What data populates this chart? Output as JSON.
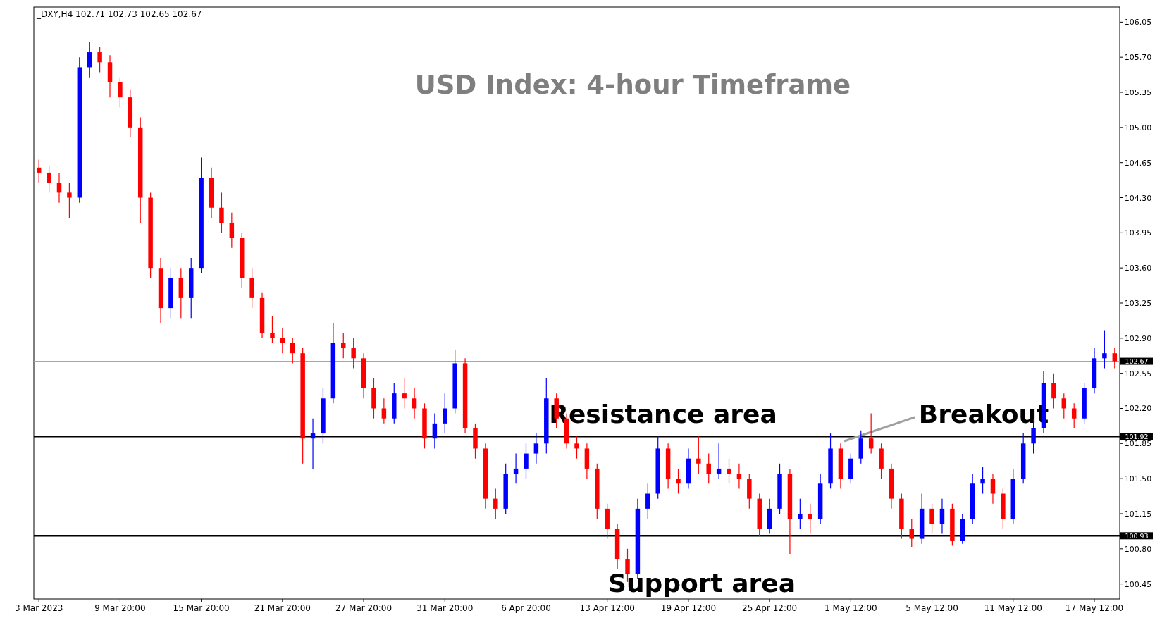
{
  "chart_data": {
    "type": "candlestick",
    "title": "USD Index: 4-hour Timeframe",
    "annotations": [
      "_DXY,H4  102.71 102.73 102.65 102.67",
      "Resistance area",
      "Support area",
      "Breakout"
    ],
    "categories": [
      "3 Mar 2023",
      null,
      null,
      null,
      null,
      null,
      null,
      null,
      "9 Mar 20:00",
      null,
      null,
      null,
      null,
      null,
      null,
      null,
      "15 Mar 20:00",
      null,
      null,
      null,
      null,
      null,
      null,
      null,
      "21 Mar 20:00",
      null,
      null,
      null,
      null,
      null,
      null,
      null,
      "27 Mar 20:00",
      null,
      null,
      null,
      null,
      null,
      null,
      null,
      "31 Mar 20:00",
      null,
      null,
      null,
      null,
      null,
      null,
      null,
      "6 Apr 20:00",
      null,
      null,
      null,
      null,
      null,
      null,
      null,
      "13 Apr 12:00",
      null,
      null,
      null,
      null,
      null,
      null,
      null,
      "19 Apr 12:00",
      null,
      null,
      null,
      null,
      null,
      null,
      null,
      "25 Apr 12:00",
      null,
      null,
      null,
      null,
      null,
      null,
      null,
      "1 May 12:00",
      null,
      null,
      null,
      null,
      null,
      null,
      null,
      "5 May 12:00",
      null,
      null,
      null,
      null,
      null,
      null,
      null,
      "11 May 12:00",
      null,
      null,
      null,
      null,
      null,
      null,
      null,
      "17 May 12:00",
      null,
      null
    ],
    "ohlc": [
      [
        104.6,
        104.68,
        104.45,
        104.55
      ],
      [
        104.55,
        104.62,
        104.35,
        104.45
      ],
      [
        104.45,
        104.55,
        104.25,
        104.35
      ],
      [
        104.35,
        104.45,
        104.1,
        104.3
      ],
      [
        104.3,
        105.7,
        104.25,
        105.6
      ],
      [
        105.6,
        105.85,
        105.5,
        105.75
      ],
      [
        105.75,
        105.8,
        105.55,
        105.65
      ],
      [
        105.65,
        105.72,
        105.3,
        105.45
      ],
      [
        105.45,
        105.5,
        105.2,
        105.3
      ],
      [
        105.3,
        105.38,
        104.9,
        105.0
      ],
      [
        105.0,
        105.1,
        104.05,
        104.3
      ],
      [
        104.3,
        104.35,
        103.5,
        103.6
      ],
      [
        103.6,
        103.7,
        103.05,
        103.2
      ],
      [
        103.2,
        103.6,
        103.1,
        103.5
      ],
      [
        103.5,
        103.6,
        103.1,
        103.3
      ],
      [
        103.3,
        103.7,
        103.1,
        103.6
      ],
      [
        103.6,
        104.7,
        103.55,
        104.5
      ],
      [
        104.5,
        104.6,
        104.1,
        104.2
      ],
      [
        104.2,
        104.35,
        103.95,
        104.05
      ],
      [
        104.05,
        104.15,
        103.8,
        103.9
      ],
      [
        103.9,
        103.95,
        103.4,
        103.5
      ],
      [
        103.5,
        103.6,
        103.2,
        103.3
      ],
      [
        103.3,
        103.35,
        102.9,
        102.95
      ],
      [
        102.95,
        103.12,
        102.85,
        102.9
      ],
      [
        102.9,
        103.0,
        102.75,
        102.85
      ],
      [
        102.85,
        102.9,
        102.65,
        102.75
      ],
      [
        102.75,
        102.8,
        101.65,
        101.9
      ],
      [
        101.9,
        102.1,
        101.6,
        101.95
      ],
      [
        101.95,
        102.4,
        101.85,
        102.3
      ],
      [
        102.3,
        103.05,
        102.25,
        102.85
      ],
      [
        102.85,
        102.95,
        102.7,
        102.8
      ],
      [
        102.8,
        102.9,
        102.6,
        102.7
      ],
      [
        102.7,
        102.75,
        102.3,
        102.4
      ],
      [
        102.4,
        102.5,
        102.1,
        102.2
      ],
      [
        102.2,
        102.3,
        102.05,
        102.1
      ],
      [
        102.1,
        102.45,
        102.05,
        102.35
      ],
      [
        102.35,
        102.5,
        102.2,
        102.3
      ],
      [
        102.3,
        102.4,
        102.1,
        102.2
      ],
      [
        102.2,
        102.25,
        101.8,
        101.9
      ],
      [
        101.9,
        102.15,
        101.8,
        102.05
      ],
      [
        102.05,
        102.35,
        101.95,
        102.2
      ],
      [
        102.2,
        102.78,
        102.15,
        102.65
      ],
      [
        102.65,
        102.7,
        101.95,
        102.0
      ],
      [
        102.0,
        102.05,
        101.7,
        101.8
      ],
      [
        101.8,
        101.85,
        101.2,
        101.3
      ],
      [
        101.3,
        101.4,
        101.1,
        101.2
      ],
      [
        101.2,
        101.65,
        101.15,
        101.55
      ],
      [
        101.55,
        101.75,
        101.45,
        101.6
      ],
      [
        101.6,
        101.85,
        101.5,
        101.75
      ],
      [
        101.75,
        101.95,
        101.65,
        101.85
      ],
      [
        101.85,
        102.5,
        101.75,
        102.3
      ],
      [
        102.3,
        102.35,
        102.0,
        102.1
      ],
      [
        102.1,
        102.15,
        101.8,
        101.85
      ],
      [
        101.85,
        101.92,
        101.7,
        101.8
      ],
      [
        101.8,
        101.85,
        101.5,
        101.6
      ],
      [
        101.6,
        101.65,
        101.1,
        101.2
      ],
      [
        101.2,
        101.25,
        100.9,
        101.0
      ],
      [
        101.0,
        101.05,
        100.6,
        100.7
      ],
      [
        100.7,
        100.8,
        100.47,
        100.55
      ],
      [
        100.55,
        101.3,
        100.5,
        101.2
      ],
      [
        101.2,
        101.45,
        101.1,
        101.35
      ],
      [
        101.35,
        101.92,
        101.3,
        101.8
      ],
      [
        101.8,
        101.85,
        101.4,
        101.5
      ],
      [
        101.5,
        101.6,
        101.35,
        101.45
      ],
      [
        101.45,
        101.8,
        101.4,
        101.7
      ],
      [
        101.7,
        101.92,
        101.55,
        101.65
      ],
      [
        101.65,
        101.75,
        101.45,
        101.55
      ],
      [
        101.55,
        101.85,
        101.5,
        101.6
      ],
      [
        101.6,
        101.7,
        101.45,
        101.55
      ],
      [
        101.55,
        101.65,
        101.4,
        101.5
      ],
      [
        101.5,
        101.55,
        101.2,
        101.3
      ],
      [
        101.3,
        101.35,
        100.93,
        101.0
      ],
      [
        101.0,
        101.3,
        100.95,
        101.2
      ],
      [
        101.2,
        101.65,
        101.15,
        101.55
      ],
      [
        101.55,
        101.6,
        100.75,
        101.1
      ],
      [
        101.1,
        101.3,
        101.0,
        101.15
      ],
      [
        101.15,
        101.25,
        100.95,
        101.1
      ],
      [
        101.1,
        101.55,
        101.05,
        101.45
      ],
      [
        101.45,
        101.95,
        101.4,
        101.8
      ],
      [
        101.8,
        101.85,
        101.4,
        101.5
      ],
      [
        101.5,
        101.75,
        101.45,
        101.7
      ],
      [
        101.7,
        101.98,
        101.65,
        101.9
      ],
      [
        101.9,
        102.15,
        101.75,
        101.8
      ],
      [
        101.8,
        101.85,
        101.5,
        101.6
      ],
      [
        101.6,
        101.65,
        101.2,
        101.3
      ],
      [
        101.3,
        101.35,
        100.9,
        101.0
      ],
      [
        101.0,
        101.1,
        100.82,
        100.9
      ],
      [
        100.9,
        101.35,
        100.85,
        101.2
      ],
      [
        101.2,
        101.25,
        100.95,
        101.05
      ],
      [
        101.05,
        101.3,
        100.95,
        101.2
      ],
      [
        101.2,
        101.25,
        100.83,
        100.88
      ],
      [
        100.88,
        101.15,
        100.85,
        101.1
      ],
      [
        101.1,
        101.55,
        101.05,
        101.45
      ],
      [
        101.45,
        101.62,
        101.35,
        101.5
      ],
      [
        101.5,
        101.55,
        101.25,
        101.35
      ],
      [
        101.35,
        101.4,
        101.0,
        101.1
      ],
      [
        101.1,
        101.6,
        101.05,
        101.5
      ],
      [
        101.5,
        101.95,
        101.45,
        101.85
      ],
      [
        101.85,
        102.1,
        101.75,
        102.0
      ],
      [
        102.0,
        102.57,
        101.95,
        102.45
      ],
      [
        102.45,
        102.55,
        102.2,
        102.3
      ],
      [
        102.3,
        102.35,
        102.1,
        102.2
      ],
      [
        102.2,
        102.25,
        102.0,
        102.1
      ],
      [
        102.1,
        102.45,
        102.05,
        102.4
      ],
      [
        102.4,
        102.8,
        102.35,
        102.7
      ],
      [
        102.7,
        102.98,
        102.6,
        102.75
      ],
      [
        102.75,
        102.8,
        102.6,
        102.67
      ]
    ],
    "colors": [
      "#ff0000",
      "#ff0000",
      "#ff0000",
      "#ff0000",
      "#0000ff",
      "#0000ff",
      "#ff0000",
      "#ff0000",
      "#ff0000",
      "#ff0000",
      "#ff0000",
      "#ff0000",
      "#ff0000",
      "#0000ff",
      "#ff0000",
      "#0000ff",
      "#0000ff",
      "#ff0000",
      "#ff0000",
      "#ff0000",
      "#ff0000",
      "#ff0000",
      "#ff0000",
      "#ff0000",
      "#ff0000",
      "#ff0000",
      "#ff0000",
      "#0000ff",
      "#0000ff",
      "#0000ff",
      "#ff0000",
      "#ff0000",
      "#ff0000",
      "#ff0000",
      "#ff0000",
      "#0000ff",
      "#ff0000",
      "#ff0000",
      "#ff0000",
      "#0000ff",
      "#0000ff",
      "#0000ff",
      "#ff0000",
      "#ff0000",
      "#ff0000",
      "#ff0000",
      "#0000ff",
      "#0000ff",
      "#0000ff",
      "#0000ff",
      "#0000ff",
      "#ff0000",
      "#ff0000",
      "#ff0000",
      "#ff0000",
      "#ff0000",
      "#ff0000",
      "#ff0000",
      "#ff0000",
      "#0000ff",
      "#0000ff",
      "#0000ff",
      "#ff0000",
      "#ff0000",
      "#0000ff",
      "#ff0000",
      "#ff0000",
      "#0000ff",
      "#ff0000",
      "#ff0000",
      "#ff0000",
      "#ff0000",
      "#0000ff",
      "#0000ff",
      "#ff0000",
      "#0000ff",
      "#ff0000",
      "#0000ff",
      "#0000ff",
      "#ff0000",
      "#0000ff",
      "#0000ff",
      "#ff0000",
      "#ff0000",
      "#ff0000",
      "#ff0000",
      "#ff0000",
      "#0000ff",
      "#ff0000",
      "#0000ff",
      "#ff0000",
      "#0000ff",
      "#0000ff",
      "#0000ff",
      "#ff0000",
      "#ff0000",
      "#0000ff",
      "#0000ff",
      "#0000ff",
      "#0000ff",
      "#ff0000",
      "#ff0000",
      "#ff0000",
      "#0000ff",
      "#0000ff",
      "#0000ff",
      "#ff0000"
    ],
    "ylim": [
      100.3,
      106.2
    ],
    "yticks": [
      100.45,
      {
        "value": 100.8,
        "label": "100.80"
      },
      101.15,
      {
        "value": 101.5,
        "label": "101.50"
      },
      101.85,
      {
        "value": 102.2,
        "label": "102.20"
      },
      102.55,
      {
        "value": 102.9,
        "label": "102.90"
      },
      103.25,
      {
        "value": 103.6,
        "label": "103.60"
      },
      103.95,
      {
        "value": 104.3,
        "label": "104.30"
      },
      104.65,
      {
        "value": 105.0,
        "label": "105.00"
      },
      105.35,
      {
        "value": 105.7,
        "label": "105.70"
      },
      106.05
    ],
    "ref_lines": [
      {
        "axis": "y",
        "value": 101.92,
        "label": "101.92",
        "color": "#000000"
      },
      {
        "axis": "y",
        "value": 100.93,
        "label": "100.93",
        "color": "#000000"
      },
      {
        "axis": "y",
        "value": 102.67,
        "label": "102.67",
        "color": "#a0a0a0"
      }
    ],
    "grid": false
  }
}
